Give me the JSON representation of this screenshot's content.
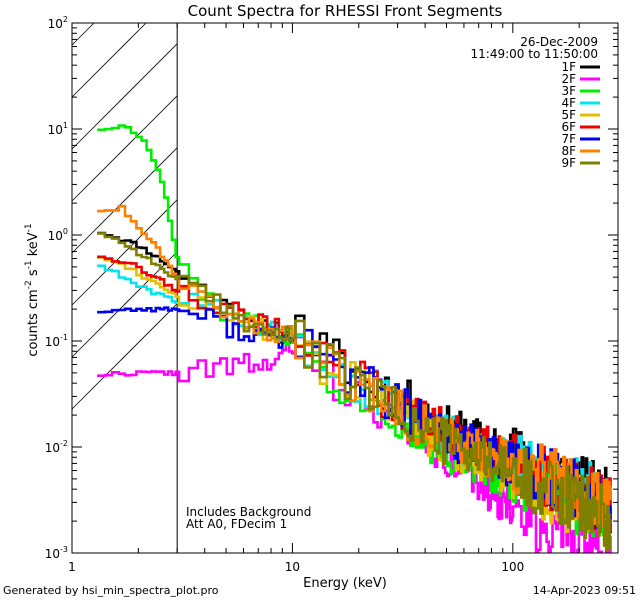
{
  "chart_data": {
    "type": "line",
    "title": "Count Spectra for RHESSI Front Segments",
    "xlabel": "Energy (keV)",
    "ylabel_parts": [
      "counts cm",
      "-2",
      " s",
      "-1",
      " keV",
      "-1"
    ],
    "xscale": "log",
    "yscale": "log",
    "xlim": [
      1,
      300
    ],
    "ylim": [
      0.001,
      100
    ],
    "x_ticks": [
      {
        "value": 1,
        "label": "1"
      },
      {
        "value": 10,
        "label": "10"
      },
      {
        "value": 100,
        "label": "100"
      }
    ],
    "y_ticks": [
      {
        "value": 100,
        "base": "10",
        "exp": "2"
      },
      {
        "value": 10,
        "base": "10",
        "exp": "1"
      },
      {
        "value": 1,
        "base": "10",
        "exp": "0"
      },
      {
        "value": 0.1,
        "base": "10",
        "exp": "-1"
      },
      {
        "value": 0.01,
        "base": "10",
        "exp": "-2"
      },
      {
        "value": 0.001,
        "base": "10",
        "exp": "-3"
      }
    ],
    "date": "26-Dec-2009",
    "time_range": "11:49:00 to 11:50:00",
    "hatched_region_max_keV": 3,
    "annotations": [
      "Includes Background",
      "Att A0, FDecim 1"
    ],
    "footer_left": "Generated by hsi_min_spectra_plot.pro",
    "footer_right": "14-Apr-2023 09:51",
    "series": [
      {
        "name": "1F",
        "color": "#000000",
        "seed": 11,
        "points": [
          [
            1.3,
            1.1
          ],
          [
            1.6,
            0.95
          ],
          [
            2.0,
            0.8
          ],
          [
            2.5,
            0.6
          ],
          [
            3.0,
            0.45
          ],
          [
            4.0,
            0.3
          ],
          [
            5.5,
            0.18
          ],
          [
            8.0,
            0.12
          ],
          [
            11.0,
            0.12
          ],
          [
            15.0,
            0.07
          ],
          [
            20.0,
            0.05
          ],
          [
            30.0,
            0.03
          ],
          [
            50.0,
            0.015
          ],
          [
            80.0,
            0.01
          ],
          [
            150.0,
            0.006
          ],
          [
            280.0,
            0.003
          ]
        ]
      },
      {
        "name": "2F",
        "color": "#ff00ff",
        "seed": 22,
        "points": [
          [
            1.3,
            0.048
          ],
          [
            2.0,
            0.05
          ],
          [
            3.0,
            0.05
          ],
          [
            4.5,
            0.055
          ],
          [
            6.0,
            0.06
          ],
          [
            8.0,
            0.06
          ],
          [
            10.5,
            0.09
          ],
          [
            13.0,
            0.06
          ],
          [
            18.0,
            0.035
          ],
          [
            25.0,
            0.025
          ],
          [
            40.0,
            0.012
          ],
          [
            70.0,
            0.005
          ],
          [
            120.0,
            0.002
          ],
          [
            180.0,
            0.0015
          ],
          [
            280.0,
            0.001
          ]
        ]
      },
      {
        "name": "3F",
        "color": "#00ee00",
        "seed": 33,
        "points": [
          [
            1.3,
            10
          ],
          [
            1.8,
            10.5
          ],
          [
            2.2,
            7
          ],
          [
            2.6,
            3
          ],
          [
            3.0,
            0.6
          ],
          [
            3.5,
            0.35
          ],
          [
            4.5,
            0.2
          ],
          [
            7.0,
            0.14
          ],
          [
            11.0,
            0.1
          ],
          [
            15.0,
            0.05
          ],
          [
            25.0,
            0.025
          ],
          [
            40.0,
            0.012
          ],
          [
            80.0,
            0.006
          ],
          [
            150.0,
            0.004
          ],
          [
            280.0,
            0.002
          ]
        ]
      },
      {
        "name": "4F",
        "color": "#00e5ee",
        "seed": 44,
        "points": [
          [
            1.3,
            0.55
          ],
          [
            1.7,
            0.4
          ],
          [
            2.2,
            0.3
          ],
          [
            3.0,
            0.24
          ],
          [
            4.5,
            0.2
          ],
          [
            7.0,
            0.14
          ],
          [
            11.0,
            0.11
          ],
          [
            15.0,
            0.06
          ],
          [
            25.0,
            0.03
          ],
          [
            40.0,
            0.016
          ],
          [
            80.0,
            0.008
          ],
          [
            150.0,
            0.005
          ],
          [
            280.0,
            0.003
          ]
        ]
      },
      {
        "name": "5F",
        "color": "#e0c000",
        "seed": 55,
        "points": [
          [
            1.3,
            0.65
          ],
          [
            1.8,
            0.5
          ],
          [
            2.4,
            0.35
          ],
          [
            3.0,
            0.27
          ],
          [
            4.5,
            0.2
          ],
          [
            7.0,
            0.13
          ],
          [
            11.0,
            0.1
          ],
          [
            15.0,
            0.055
          ],
          [
            25.0,
            0.028
          ],
          [
            40.0,
            0.014
          ],
          [
            80.0,
            0.007
          ],
          [
            150.0,
            0.0035
          ],
          [
            280.0,
            0.002
          ]
        ]
      },
      {
        "name": "6F",
        "color": "#ee0000",
        "seed": 66,
        "points": [
          [
            1.3,
            0.65
          ],
          [
            1.8,
            0.55
          ],
          [
            2.4,
            0.4
          ],
          [
            3.0,
            0.3
          ],
          [
            4.5,
            0.22
          ],
          [
            7.0,
            0.15
          ],
          [
            11.0,
            0.11
          ],
          [
            15.0,
            0.06
          ],
          [
            25.0,
            0.032
          ],
          [
            40.0,
            0.017
          ],
          [
            80.0,
            0.009
          ],
          [
            150.0,
            0.005
          ],
          [
            280.0,
            0.0028
          ]
        ]
      },
      {
        "name": "7F",
        "color": "#0000ee",
        "seed": 77,
        "points": [
          [
            1.3,
            0.19
          ],
          [
            2.0,
            0.2
          ],
          [
            3.0,
            0.2
          ],
          [
            4.0,
            0.17
          ],
          [
            5.5,
            0.13
          ],
          [
            7.5,
            0.11
          ],
          [
            11.0,
            0.1
          ],
          [
            15.0,
            0.06
          ],
          [
            25.0,
            0.032
          ],
          [
            40.0,
            0.016
          ],
          [
            80.0,
            0.008
          ],
          [
            150.0,
            0.005
          ],
          [
            280.0,
            0.0028
          ]
        ]
      },
      {
        "name": "8F",
        "color": "#ff8000",
        "seed": 88,
        "points": [
          [
            1.3,
            1.7
          ],
          [
            1.7,
            1.8
          ],
          [
            2.0,
            1.2
          ],
          [
            2.4,
            0.8
          ],
          [
            3.0,
            0.4
          ],
          [
            4.0,
            0.26
          ],
          [
            6.0,
            0.16
          ],
          [
            9.0,
            0.11
          ],
          [
            11.0,
            0.11
          ],
          [
            15.0,
            0.06
          ],
          [
            25.0,
            0.03
          ],
          [
            40.0,
            0.015
          ],
          [
            80.0,
            0.008
          ],
          [
            150.0,
            0.005
          ],
          [
            280.0,
            0.0025
          ]
        ]
      },
      {
        "name": "9F",
        "color": "#808000",
        "seed": 99,
        "points": [
          [
            1.3,
            1.1
          ],
          [
            1.7,
            0.85
          ],
          [
            2.2,
            0.6
          ],
          [
            3.0,
            0.38
          ],
          [
            4.0,
            0.26
          ],
          [
            6.0,
            0.16
          ],
          [
            9.0,
            0.11
          ],
          [
            11.0,
            0.1
          ],
          [
            15.0,
            0.055
          ],
          [
            25.0,
            0.028
          ],
          [
            40.0,
            0.014
          ],
          [
            80.0,
            0.007
          ],
          [
            150.0,
            0.004
          ],
          [
            280.0,
            0.002
          ]
        ]
      }
    ]
  }
}
